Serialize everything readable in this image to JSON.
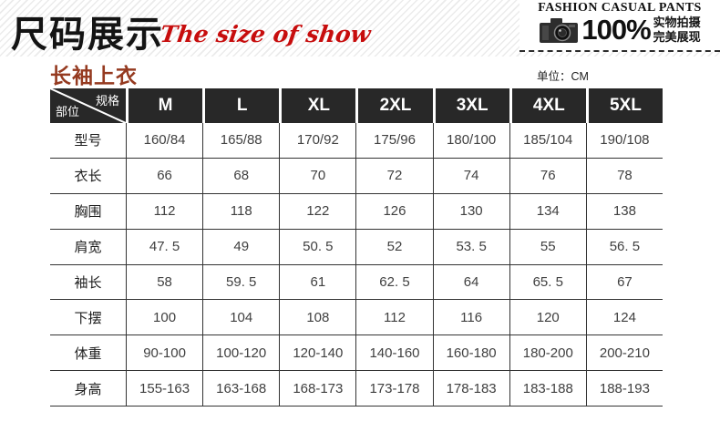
{
  "banner": {
    "title_cn": "尺码展示",
    "title_en": "The size of show",
    "right": {
      "heading": "FASHION CASUAL PANTS",
      "percent": "100%",
      "tagline_line1": "实物拍摄",
      "tagline_line2": "完美展现"
    }
  },
  "section": {
    "title": "长袖上衣",
    "unit_label": "单位：CM"
  },
  "table": {
    "corner": {
      "top_right": "规格",
      "bottom_left": "部位"
    },
    "size_headers": [
      "M",
      "L",
      "XL",
      "2XL",
      "3XL",
      "4XL",
      "5XL"
    ],
    "rows": [
      {
        "label": "型号",
        "values": [
          "160/84",
          "165/88",
          "170/92",
          "175/96",
          "180/100",
          "185/104",
          "190/108"
        ]
      },
      {
        "label": "衣长",
        "values": [
          "66",
          "68",
          "70",
          "72",
          "74",
          "76",
          "78"
        ]
      },
      {
        "label": "胸围",
        "values": [
          "112",
          "118",
          "122",
          "126",
          "130",
          "134",
          "138"
        ]
      },
      {
        "label": "肩宽",
        "values": [
          "47. 5",
          "49",
          "50. 5",
          "52",
          "53. 5",
          "55",
          "56. 5"
        ]
      },
      {
        "label": "袖长",
        "values": [
          "58",
          "59. 5",
          "61",
          "62. 5",
          "64",
          "65. 5",
          "67"
        ]
      },
      {
        "label": "下摆",
        "values": [
          "100",
          "104",
          "108",
          "112",
          "116",
          "120",
          "124"
        ]
      },
      {
        "label": "体重",
        "values": [
          "90-100",
          "100-120",
          "120-140",
          "140-160",
          "160-180",
          "180-200",
          "200-210"
        ]
      },
      {
        "label": "身高",
        "values": [
          "155-163",
          "163-168",
          "168-173",
          "173-178",
          "178-183",
          "183-188",
          "188-193"
        ]
      }
    ]
  },
  "colors": {
    "accent_red": "#c70d0d",
    "section_red": "#953a20",
    "header_bg": "#282828",
    "table_border": "#333333"
  }
}
